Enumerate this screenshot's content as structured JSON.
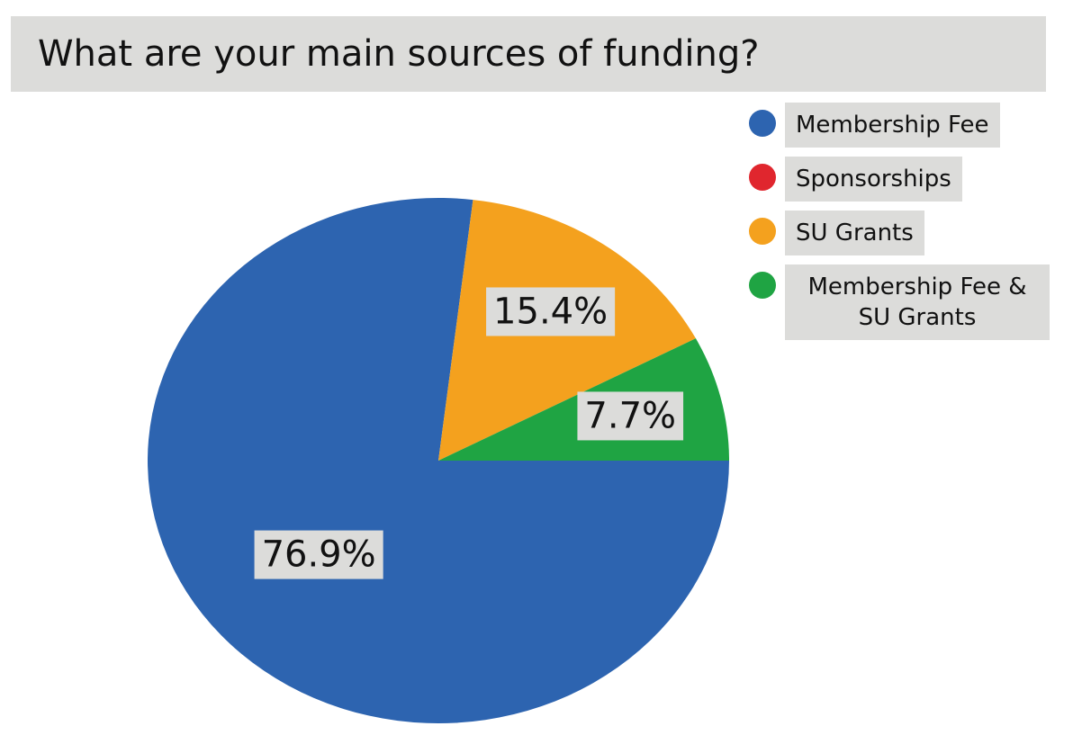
{
  "chart_data": {
    "type": "pie",
    "title": "What are your main sources of funding?",
    "categories": [
      "Membership Fee",
      "Sponsorships",
      "SU Grants",
      "Membership Fee & SU Grants"
    ],
    "values": [
      76.9,
      0,
      15.4,
      7.7
    ],
    "value_labels": [
      "76.9%",
      null,
      "15.4%",
      "7.7%"
    ],
    "colors": [
      "#2d64b0",
      "#e0262e",
      "#f4a11e",
      "#1fa443"
    ],
    "legend": "top-right"
  }
}
